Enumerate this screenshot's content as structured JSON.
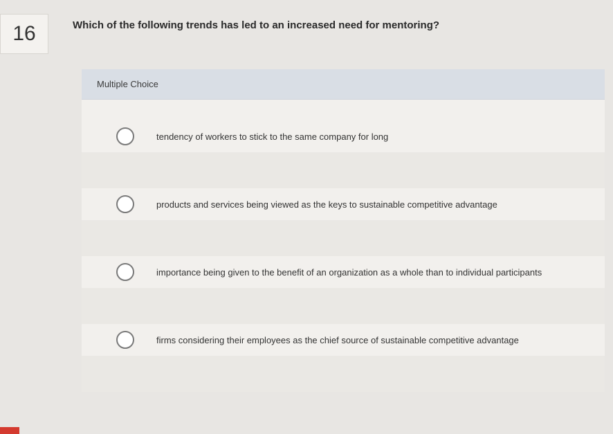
{
  "question": {
    "number": "16",
    "text": "Which of the following trends has led to an increased need for mentoring?"
  },
  "panel": {
    "header": "Multiple Choice",
    "options": [
      {
        "label": "tendency of workers to stick to the same company for long"
      },
      {
        "label": "products and services being viewed as the keys to sustainable competitive advantage"
      },
      {
        "label": "importance being given to the benefit of an organization as a whole than to individual participants"
      },
      {
        "label": "firms considering their employees as the chief source of sustainable competitive advantage"
      }
    ]
  },
  "colors": {
    "page_bg": "#e8e6e3",
    "panel_bg": "#f2f0ed",
    "header_bg": "#d9dee5",
    "gap_bg": "#eae8e4",
    "radio_border": "#7a7a7a",
    "text": "#333333",
    "red_accent": "#d43a2f"
  }
}
